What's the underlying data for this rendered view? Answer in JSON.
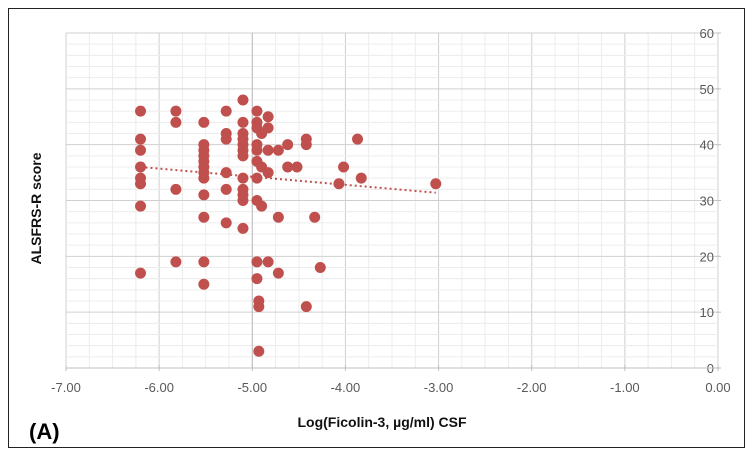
{
  "chart_data": {
    "type": "scatter",
    "panel_label": "(A)",
    "title": "",
    "xlabel": "Log(Ficolin-3, µg/ml) CSF",
    "ylabel": "ALSFRS-R score",
    "xlim": [
      -7,
      0
    ],
    "ylim": [
      0,
      60
    ],
    "x_ticks": [
      "-7.00",
      "-6.00",
      "-5.00",
      "-4.00",
      "-3.00",
      "-2.00",
      "-1.00",
      "0.00"
    ],
    "y_ticks": [
      "0",
      "10",
      "20",
      "30",
      "40",
      "50",
      "60"
    ],
    "grid": true,
    "marker_color": "#c0504d",
    "trendline": {
      "type": "linear",
      "style": "dotted",
      "x": [
        -6.2,
        -3.03
      ],
      "y": [
        36.0,
        31.4
      ]
    },
    "points": [
      {
        "x": -6.2,
        "y": 46
      },
      {
        "x": -6.2,
        "y": 41
      },
      {
        "x": -6.2,
        "y": 39
      },
      {
        "x": -6.2,
        "y": 36
      },
      {
        "x": -6.2,
        "y": 34
      },
      {
        "x": -6.2,
        "y": 33
      },
      {
        "x": -6.2,
        "y": 29
      },
      {
        "x": -6.2,
        "y": 17
      },
      {
        "x": -5.82,
        "y": 46
      },
      {
        "x": -5.82,
        "y": 44
      },
      {
        "x": -5.82,
        "y": 32
      },
      {
        "x": -5.82,
        "y": 19
      },
      {
        "x": -5.52,
        "y": 44
      },
      {
        "x": -5.52,
        "y": 40
      },
      {
        "x": -5.52,
        "y": 39
      },
      {
        "x": -5.52,
        "y": 38
      },
      {
        "x": -5.52,
        "y": 37
      },
      {
        "x": -5.52,
        "y": 36
      },
      {
        "x": -5.52,
        "y": 35
      },
      {
        "x": -5.52,
        "y": 34
      },
      {
        "x": -5.52,
        "y": 31
      },
      {
        "x": -5.52,
        "y": 27
      },
      {
        "x": -5.52,
        "y": 19
      },
      {
        "x": -5.52,
        "y": 15
      },
      {
        "x": -5.28,
        "y": 46
      },
      {
        "x": -5.28,
        "y": 42
      },
      {
        "x": -5.28,
        "y": 41
      },
      {
        "x": -5.28,
        "y": 35
      },
      {
        "x": -5.28,
        "y": 32
      },
      {
        "x": -5.28,
        "y": 26
      },
      {
        "x": -5.1,
        "y": 48
      },
      {
        "x": -5.1,
        "y": 44
      },
      {
        "x": -5.1,
        "y": 42
      },
      {
        "x": -5.1,
        "y": 41
      },
      {
        "x": -5.1,
        "y": 40
      },
      {
        "x": -5.1,
        "y": 39
      },
      {
        "x": -5.1,
        "y": 38
      },
      {
        "x": -5.1,
        "y": 34
      },
      {
        "x": -5.1,
        "y": 32
      },
      {
        "x": -5.1,
        "y": 31
      },
      {
        "x": -5.1,
        "y": 30
      },
      {
        "x": -5.1,
        "y": 25
      },
      {
        "x": -4.95,
        "y": 46
      },
      {
        "x": -4.95,
        "y": 44
      },
      {
        "x": -4.95,
        "y": 43
      },
      {
        "x": -4.95,
        "y": 40
      },
      {
        "x": -4.95,
        "y": 39
      },
      {
        "x": -4.95,
        "y": 37
      },
      {
        "x": -4.95,
        "y": 34
      },
      {
        "x": -4.95,
        "y": 30
      },
      {
        "x": -4.95,
        "y": 19
      },
      {
        "x": -4.95,
        "y": 16
      },
      {
        "x": -4.93,
        "y": 12
      },
      {
        "x": -4.93,
        "y": 11
      },
      {
        "x": -4.93,
        "y": 3
      },
      {
        "x": -4.9,
        "y": 42
      },
      {
        "x": -4.9,
        "y": 29
      },
      {
        "x": -4.9,
        "y": 36
      },
      {
        "x": -4.83,
        "y": 45
      },
      {
        "x": -4.83,
        "y": 43
      },
      {
        "x": -4.83,
        "y": 39
      },
      {
        "x": -4.83,
        "y": 35
      },
      {
        "x": -4.83,
        "y": 19
      },
      {
        "x": -4.72,
        "y": 39
      },
      {
        "x": -4.72,
        "y": 27
      },
      {
        "x": -4.72,
        "y": 17
      },
      {
        "x": -4.62,
        "y": 40
      },
      {
        "x": -4.62,
        "y": 36
      },
      {
        "x": -4.52,
        "y": 36
      },
      {
        "x": -4.42,
        "y": 41
      },
      {
        "x": -4.42,
        "y": 40
      },
      {
        "x": -4.42,
        "y": 11
      },
      {
        "x": -4.33,
        "y": 27
      },
      {
        "x": -4.27,
        "y": 18
      },
      {
        "x": -4.07,
        "y": 33
      },
      {
        "x": -4.02,
        "y": 36
      },
      {
        "x": -3.87,
        "y": 41
      },
      {
        "x": -3.83,
        "y": 34
      },
      {
        "x": -3.03,
        "y": 33
      }
    ]
  }
}
